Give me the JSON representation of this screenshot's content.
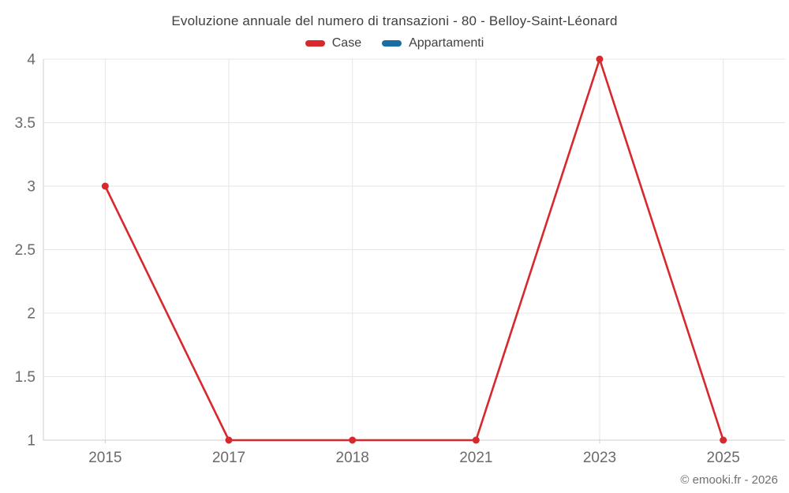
{
  "header": {
    "title": "Evoluzione annuale del numero di transazioni - 80 - Belloy-Saint-Léonard"
  },
  "legend": {
    "items": [
      {
        "label": "Case",
        "color": "#d7282d"
      },
      {
        "label": "Appartamenti",
        "color": "#1a6da1"
      }
    ]
  },
  "footer": {
    "copyright": "© emooki.fr - 2026"
  },
  "colors": {
    "background": "#ffffff",
    "grid": "#e6e6e6",
    "axis": "#cccccc",
    "tick_label": "#6a6a6a",
    "title_text": "#3f3f3f",
    "copyright_text": "#6f6f6f"
  },
  "chart_data": {
    "type": "line",
    "title": "Evoluzione annuale del numero di transazioni - 80 - Belloy-Saint-Léonard",
    "categories": [
      "2015",
      "2017",
      "2018",
      "2021",
      "2023",
      "2025"
    ],
    "series": [
      {
        "name": "Case",
        "color": "#d7282d",
        "values": [
          3,
          1,
          1,
          1,
          4,
          1
        ]
      },
      {
        "name": "Appartamenti",
        "color": "#1a6da1",
        "values": []
      }
    ],
    "xlabel": "",
    "ylabel": "",
    "ylim": [
      1,
      4
    ],
    "yticks": [
      1,
      1.5,
      2,
      2.5,
      3,
      3.5,
      4
    ],
    "grid": true,
    "legend_position": "top",
    "marker_radius": 4.5,
    "line_width": 2.6
  }
}
